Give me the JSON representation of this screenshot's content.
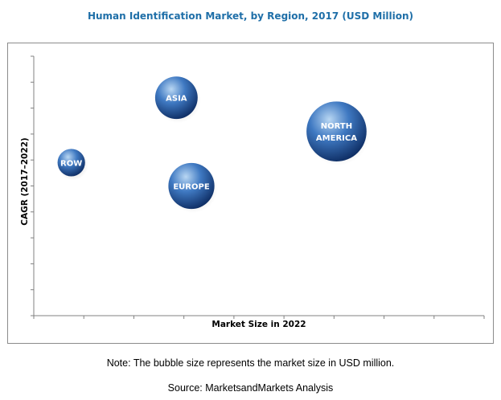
{
  "title": "Human Identification Market, by Region, 2017 (USD Million)",
  "note": "Note: The bubble size represents the market size in USD million.",
  "source": "Source: MarketsandMarkets Analysis",
  "colors": {
    "bubble_light": "#b9d7f3",
    "bubble_mid": "#3f79c2",
    "bubble_dark": "#0f2f66",
    "title": "#1f6fa8",
    "axis": "#808080"
  },
  "chart_data": {
    "type": "scatter",
    "title": "Human Identification Market, by Region, 2017 (USD Million)",
    "xlabel": "Market Size in 2022",
    "ylabel": "CAGR (2017–2022)",
    "xlim": [
      0,
      9
    ],
    "ylim": [
      0,
      10
    ],
    "x_ticks": 9,
    "y_ticks": 10,
    "grid": false,
    "legend": "none",
    "series": [
      {
        "label": "ROW",
        "lines": [
          "ROW"
        ],
        "x": 0.75,
        "y": 5.9,
        "size": 0.55
      },
      {
        "label": "ASIA",
        "lines": [
          "ASIA"
        ],
        "x": 2.85,
        "y": 8.4,
        "size": 0.85
      },
      {
        "label": "EUROPE",
        "lines": [
          "EUROPE"
        ],
        "x": 3.15,
        "y": 5.0,
        "size": 0.92
      },
      {
        "label": "NORTH AMERICA",
        "lines": [
          "NORTH",
          "AMERICA"
        ],
        "x": 6.05,
        "y": 7.1,
        "size": 1.2
      }
    ]
  }
}
